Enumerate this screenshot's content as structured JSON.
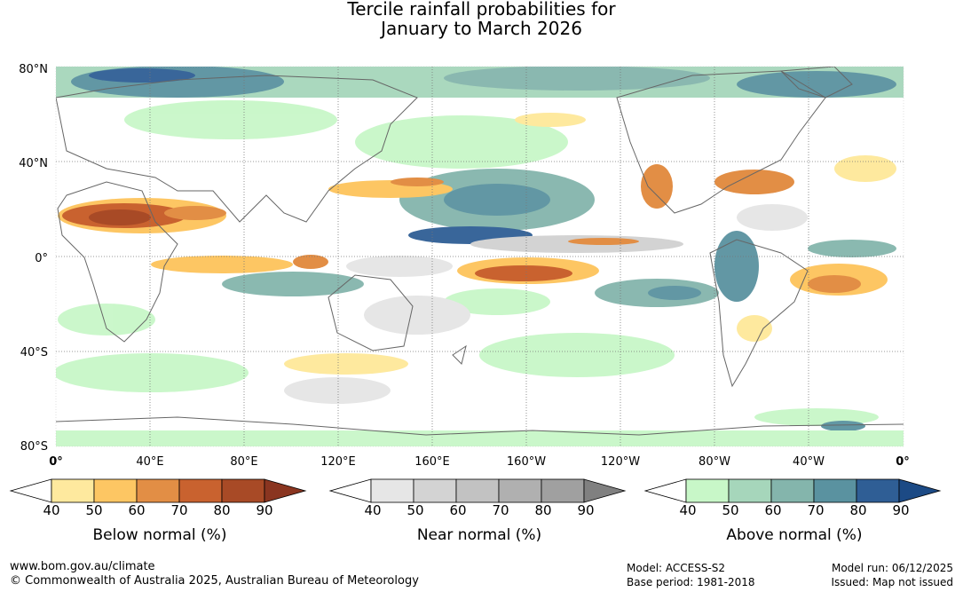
{
  "title": {
    "line1": "Tercile rainfall probabilities for",
    "line2": "January to March 2026"
  },
  "map": {
    "lat_labels": [
      "80°N",
      "40°N",
      "0°",
      "40°S",
      "80°S"
    ],
    "lon_labels": [
      "0°",
      "40°E",
      "80°E",
      "120°E",
      "160°E",
      "160°W",
      "120°W",
      "80°W",
      "40°W",
      "0°"
    ]
  },
  "legends": [
    {
      "caption": "Below normal (%)",
      "ticks": [
        "40",
        "50",
        "60",
        "70",
        "80",
        "90"
      ],
      "colors": [
        "#ffffff",
        "#fee99e",
        "#fdc663",
        "#e28e45",
        "#c9622f",
        "#a84a26",
        "#8a3520"
      ]
    },
    {
      "caption": "Near normal (%)",
      "ticks": [
        "40",
        "50",
        "60",
        "70",
        "80",
        "90"
      ],
      "colors": [
        "#ffffff",
        "#e6e6e6",
        "#d3d3d3",
        "#c2c2c2",
        "#b0b0b0",
        "#a0a0a0",
        "#808080"
      ]
    },
    {
      "caption": "Above normal (%)",
      "ticks": [
        "40",
        "50",
        "60",
        "70",
        "80",
        "90"
      ],
      "colors": [
        "#ffffff",
        "#c8f7c8",
        "#a6d6bb",
        "#84b5ac",
        "#5a92a0",
        "#2f5e95",
        "#1c4a85"
      ]
    }
  ],
  "footer": {
    "url": "www.bom.gov.au/climate",
    "copyright": "© Commonwealth of Australia 2025, Australian Bureau of Meteorology",
    "model": "Model: ACCESS-S2",
    "base_period": "Base period: 1981-2018",
    "model_run": "Model run: 06/12/2025",
    "issued": "Issued: Map not issued"
  }
}
